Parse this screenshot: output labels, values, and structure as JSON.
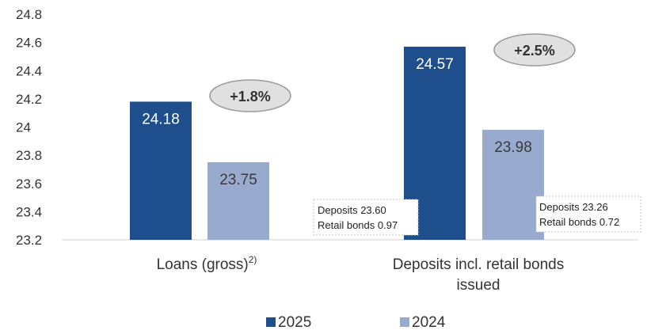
{
  "chart_data": {
    "type": "bar",
    "title": "",
    "xlabel": "",
    "ylabel": "",
    "ylim": [
      23.2,
      24.8
    ],
    "yticks": [
      "24.8",
      "24.6",
      "24.4",
      "24.2",
      "24",
      "23.8",
      "23.6",
      "23.4",
      "23.2"
    ],
    "categories": [
      {
        "label": "Loans (gross)",
        "superscript": "2)"
      },
      {
        "label": "Deposits incl. retail bonds",
        "label_line2": "issued"
      }
    ],
    "series": [
      {
        "name": "2025",
        "color": "#1f4e8c",
        "values": [
          24.18,
          24.57
        ],
        "labels": [
          "24.18",
          "24.57"
        ]
      },
      {
        "name": "2024",
        "color": "#98abcf",
        "values": [
          23.75,
          23.98
        ],
        "labels": [
          "23.75",
          "23.98"
        ]
      }
    ],
    "growth_labels": [
      "+1.8%",
      "+2.5%"
    ],
    "annotations": [
      {
        "line1": "Deposits 23.60",
        "line2": "Retail bonds 0.97"
      },
      {
        "line1": "Deposits 23.26",
        "line2": "Retail bonds 0.72"
      }
    ],
    "legend": {
      "position": "bottom"
    },
    "grid": {
      "horizontal": false,
      "baseline": true
    }
  }
}
